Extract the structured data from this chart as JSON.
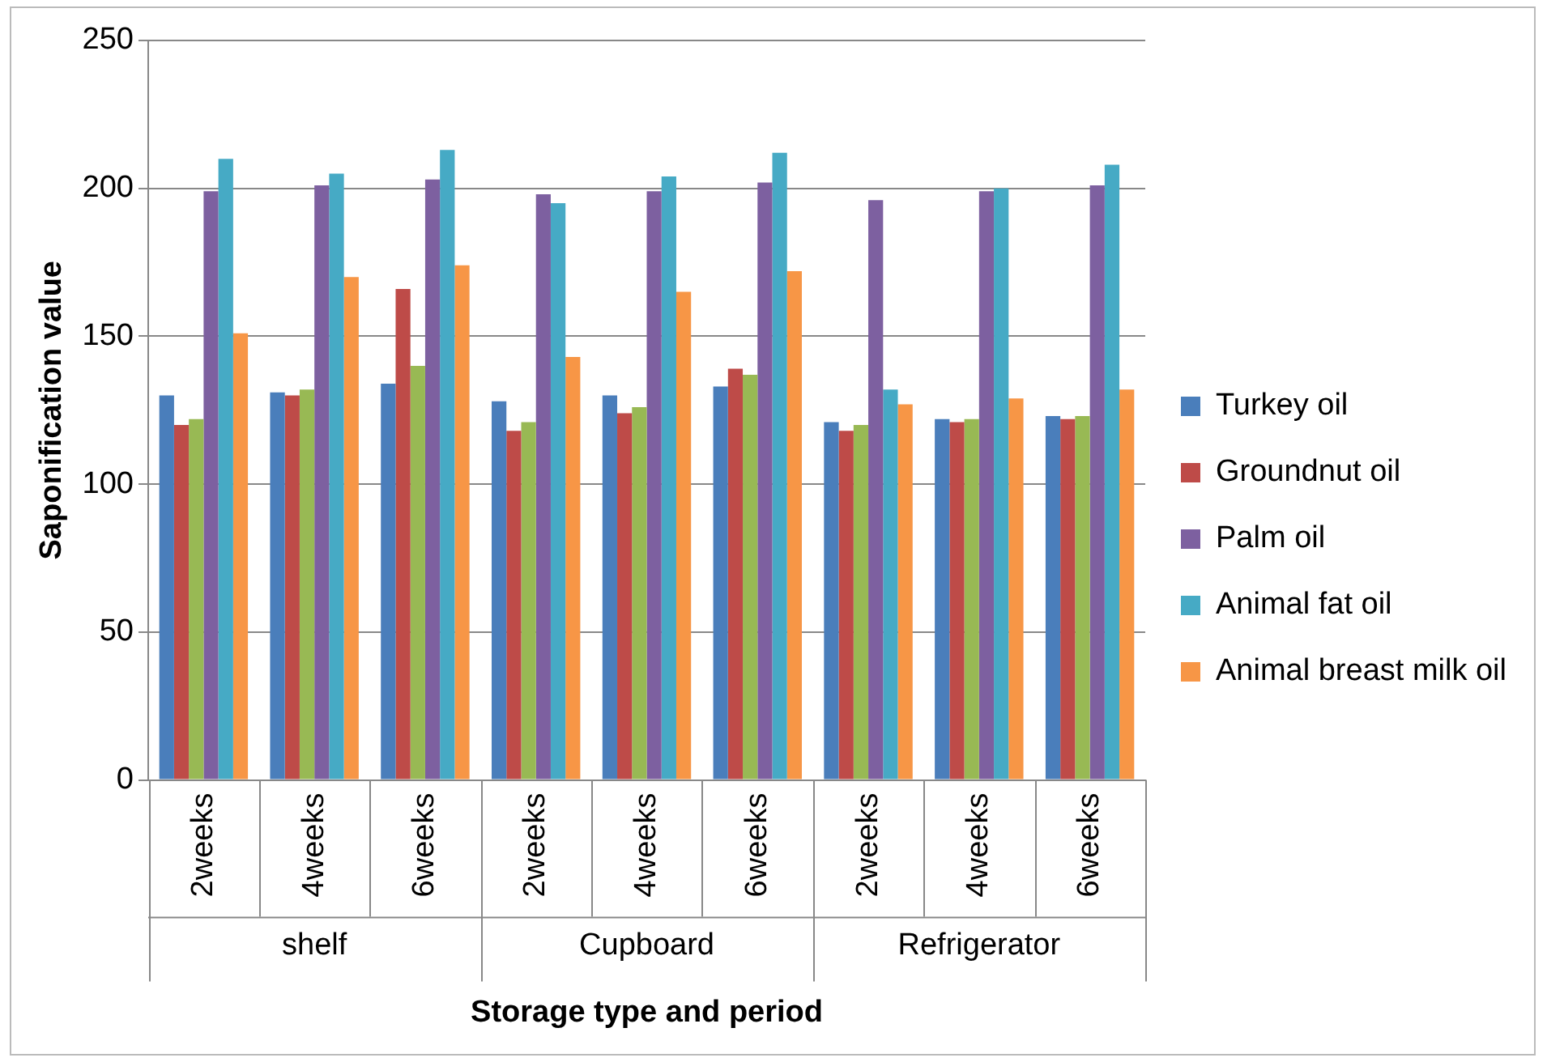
{
  "chart_data": {
    "type": "bar",
    "xlabel": "Storage type and period",
    "ylabel": "Saponification value",
    "categories": [
      "2weeks",
      "4weeks",
      "6weeks",
      "2weeks",
      "4weeks",
      "6weeks",
      "2weeks",
      "4weeks",
      "6weeks"
    ],
    "annotations": [
      "shelf",
      "Cupboard",
      "Refrigerator"
    ],
    "series": [
      {
        "name": "Turkey oil",
        "color": "#4a7ebb",
        "values": [
          130,
          131,
          134,
          128,
          130,
          133,
          121,
          122,
          123
        ]
      },
      {
        "name": "Groundnut oil",
        "color": "#be4b48",
        "values": [
          120,
          130,
          166,
          118,
          124,
          139,
          118,
          121,
          122
        ]
      },
      {
        "color": "#98b954",
        "values": [
          122,
          132,
          140,
          121,
          126,
          137,
          120,
          122,
          123
        ]
      },
      {
        "name": "Palm oil",
        "color": "#7d60a0",
        "values": [
          199,
          201,
          203,
          198,
          199,
          202,
          196,
          199,
          201
        ]
      },
      {
        "name": "Animal fat oil",
        "color": "#46aac5",
        "values": [
          210,
          205,
          213,
          195,
          204,
          212,
          132,
          200,
          208
        ]
      },
      {
        "name": "Animal breast milk oil",
        "color": "#f79646",
        "values": [
          151,
          170,
          174,
          143,
          165,
          172,
          127,
          129,
          132
        ]
      }
    ],
    "ylim": [
      0,
      250
    ],
    "yticks": [
      0,
      50,
      100,
      150,
      200,
      250
    ],
    "grid": "y",
    "legend": "right"
  }
}
